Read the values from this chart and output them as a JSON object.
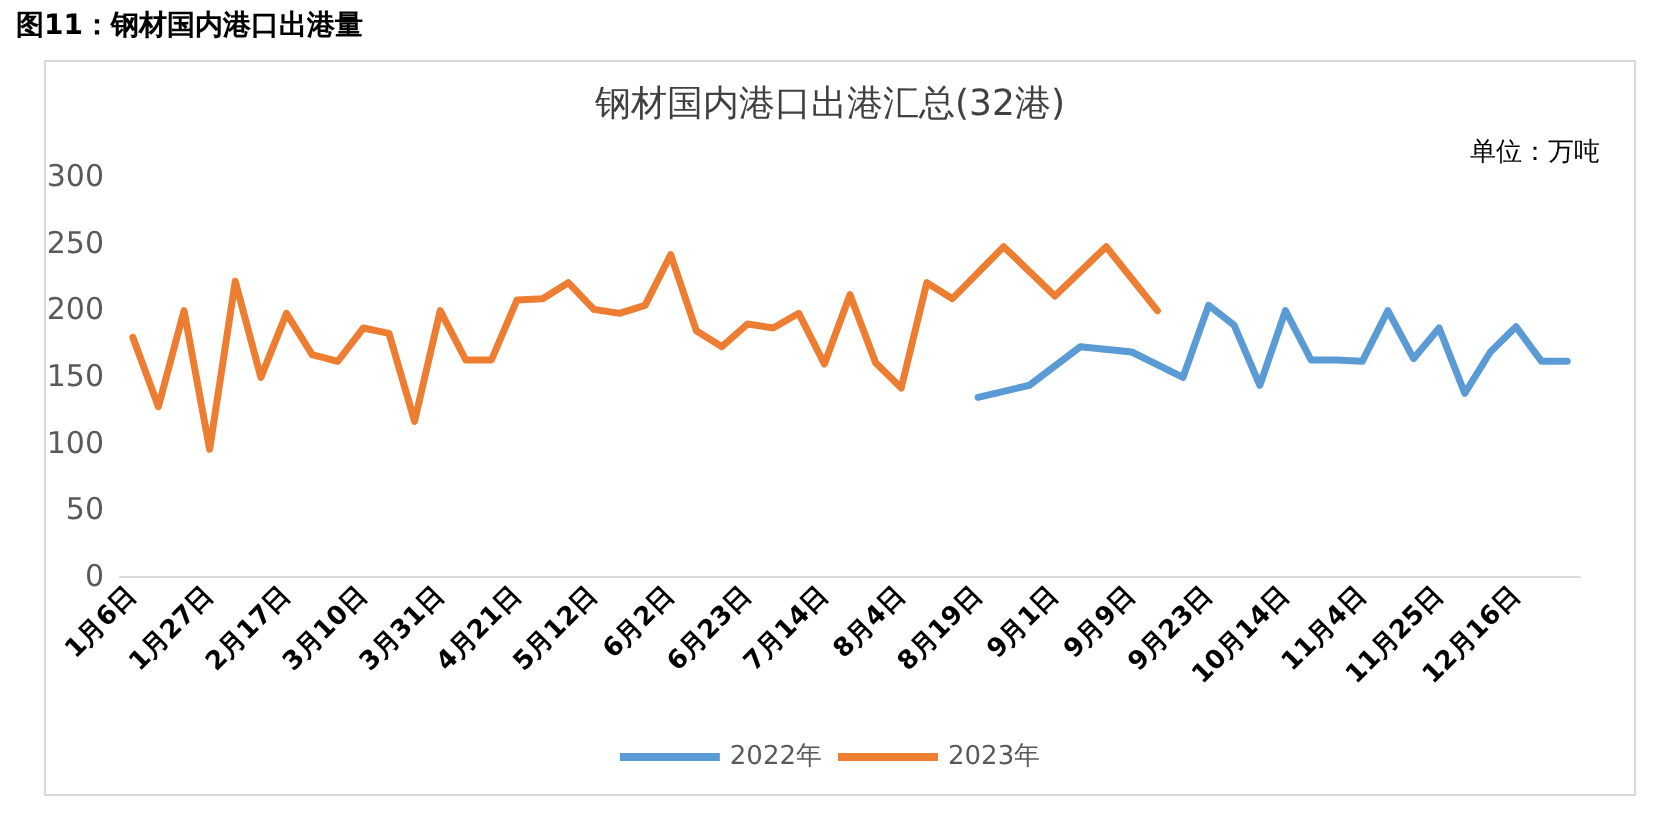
{
  "chart_data": {
    "type": "line",
    "title": "钢材国内港口出港汇总(32港)",
    "annotations": [
      "图11：钢材国内港口出港量",
      "单位：万吨"
    ],
    "categories": [
      "1月6日",
      null,
      null,
      "1月27日",
      null,
      null,
      "2月17日",
      null,
      null,
      "3月10日",
      null,
      null,
      "3月31日",
      null,
      null,
      "4月21日",
      null,
      null,
      "5月12日",
      null,
      null,
      "6月2日",
      null,
      null,
      "6月23日",
      null,
      null,
      "7月14日",
      null,
      null,
      "8月4日",
      null,
      null,
      "8月19日",
      null,
      null,
      "9月1日",
      null,
      null,
      "9月9日",
      null,
      null,
      "9月23日",
      null,
      null,
      "10月14日",
      null,
      null,
      "11月4日",
      null,
      null,
      "11月25日",
      null,
      null,
      "12月16日",
      null,
      null
    ],
    "series": [
      {
        "name": "2022年",
        "color": "#5b9bd5",
        "values": [
          null,
          null,
          null,
          null,
          null,
          null,
          null,
          null,
          null,
          null,
          null,
          null,
          null,
          null,
          null,
          null,
          null,
          null,
          null,
          null,
          null,
          null,
          null,
          null,
          null,
          null,
          null,
          null,
          null,
          null,
          null,
          null,
          null,
          134,
          null,
          143,
          null,
          172,
          null,
          168,
          null,
          149,
          203,
          188,
          143,
          199,
          162,
          162,
          161,
          199,
          163,
          186,
          137,
          168,
          187,
          161,
          161
        ]
      },
      {
        "name": "2023年",
        "color": "#ed7d31",
        "values": [
          179,
          127,
          199,
          95,
          221,
          149,
          197,
          166,
          161,
          186,
          182,
          116,
          199,
          162,
          162,
          207,
          208,
          220,
          200,
          197,
          203,
          241,
          184,
          172,
          189,
          186,
          197,
          159,
          211,
          160,
          141,
          220,
          208,
          null,
          247,
          null,
          210,
          null,
          247,
          null,
          199,
          null,
          null,
          null,
          null,
          null,
          null,
          null,
          null,
          null,
          null,
          null,
          null,
          null,
          null,
          null,
          null
        ]
      }
    ],
    "ylim": [
      0,
      300
    ],
    "yticks": [
      0,
      50,
      100,
      150,
      200,
      250,
      300
    ],
    "grid": false,
    "legend": "bottom",
    "marker": "none",
    "line_style": "solid"
  }
}
